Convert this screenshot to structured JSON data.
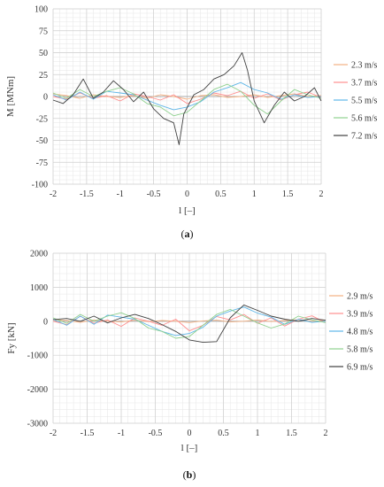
{
  "chart_data": [
    {
      "type": "line",
      "panel": "a",
      "caption_open": "(",
      "caption_letter": "a",
      "caption_close": ")",
      "xlabel": "l [–]",
      "ylabel": "M [MNm]",
      "xlim": [
        -2,
        2
      ],
      "ylim": [
        -100,
        100
      ],
      "xticks": [
        "-2",
        "-1.5",
        "-1",
        "-0.5",
        "0",
        "0.5",
        "1",
        "1.5",
        "2"
      ],
      "yticks": [
        "100",
        "75",
        "50",
        "25",
        "0",
        "-25",
        "-50",
        "-75",
        "-100"
      ],
      "grid": true,
      "legend_position": "right",
      "series": [
        {
          "name": "2.3 m/s",
          "color": "#f4b183",
          "x": [
            -2,
            -1.8,
            -1.6,
            -1.4,
            -1.2,
            -1,
            -0.8,
            -0.6,
            -0.4,
            -0.2,
            0,
            0.2,
            0.4,
            0.6,
            0.8,
            1,
            1.2,
            1.4,
            1.6,
            1.8,
            2
          ],
          "y": [
            3,
            1,
            -2,
            2,
            0,
            -1,
            1,
            -2,
            2,
            0,
            -3,
            1,
            2,
            -1,
            0,
            2,
            -1,
            1,
            3,
            0,
            1
          ]
        },
        {
          "name": "3.7 m/s",
          "color": "#ff8f8f",
          "x": [
            -2,
            -1.8,
            -1.6,
            -1.4,
            -1.2,
            -1,
            -0.8,
            -0.6,
            -0.4,
            -0.2,
            0,
            0.2,
            0.4,
            0.6,
            0.8,
            1,
            1.2,
            1.4,
            1.6,
            1.8,
            2
          ],
          "y": [
            0,
            -3,
            4,
            -2,
            1,
            -5,
            3,
            0,
            -4,
            2,
            -8,
            -3,
            4,
            1,
            6,
            -2,
            3,
            -4,
            2,
            5,
            -1
          ]
        },
        {
          "name": "5.5 m/s",
          "color": "#5fb7e8",
          "x": [
            -2,
            -1.8,
            -1.6,
            -1.4,
            -1.2,
            -1,
            -0.8,
            -0.6,
            -0.4,
            -0.2,
            0,
            0.2,
            0.4,
            0.6,
            0.8,
            1,
            1.2,
            1.4,
            1.6,
            1.8,
            2
          ],
          "y": [
            2,
            -4,
            5,
            -3,
            6,
            4,
            2,
            -4,
            -10,
            -15,
            -12,
            -6,
            5,
            10,
            16,
            8,
            4,
            -3,
            2,
            -1,
            0
          ]
        },
        {
          "name": "5.6 m/s",
          "color": "#8fd18f",
          "x": [
            -2,
            -1.8,
            -1.6,
            -1.4,
            -1.2,
            -1,
            -0.8,
            -0.6,
            -0.4,
            -0.2,
            0,
            0.2,
            0.4,
            0.6,
            0.8,
            1,
            1.2,
            1.4,
            1.6,
            1.8,
            2
          ],
          "y": [
            4,
            -2,
            8,
            0,
            6,
            10,
            3,
            -8,
            -12,
            -22,
            -18,
            -5,
            8,
            14,
            6,
            -10,
            -20,
            -5,
            8,
            2,
            -2
          ]
        },
        {
          "name": "7.2 m/s",
          "color": "#404040",
          "x": [
            -2,
            -1.85,
            -1.7,
            -1.55,
            -1.4,
            -1.25,
            -1.1,
            -0.95,
            -0.8,
            -0.65,
            -0.5,
            -0.35,
            -0.2,
            -0.12,
            -0.05,
            0.1,
            0.25,
            0.4,
            0.55,
            0.7,
            0.82,
            0.9,
            1,
            1.15,
            1.3,
            1.45,
            1.6,
            1.75,
            1.9,
            2
          ],
          "y": [
            -4,
            -8,
            2,
            20,
            -2,
            5,
            18,
            8,
            -6,
            5,
            -14,
            -25,
            -30,
            -55,
            -20,
            2,
            8,
            20,
            25,
            35,
            50,
            30,
            -5,
            -30,
            -10,
            5,
            -5,
            0,
            10,
            -5
          ]
        }
      ]
    },
    {
      "type": "line",
      "panel": "b",
      "caption_open": "(",
      "caption_letter": "b",
      "caption_close": ")",
      "xlabel": "l [–]",
      "ylabel": "Fy [kN]",
      "xlim": [
        -2,
        2
      ],
      "ylim": [
        -3000,
        2000
      ],
      "xticks": [
        "-2",
        "-1.5",
        "-1",
        "-0.5",
        "0",
        "0.5",
        "1",
        "1.5",
        "2"
      ],
      "yticks": [
        "2000",
        "1000",
        "0",
        "-1000",
        "-2000",
        "-3000"
      ],
      "grid": true,
      "legend_position": "right",
      "series": [
        {
          "name": "2.9 m/s",
          "color": "#f4b183",
          "x": [
            -2,
            -1.8,
            -1.6,
            -1.4,
            -1.2,
            -1,
            -0.8,
            -0.6,
            -0.4,
            -0.2,
            0,
            0.2,
            0.4,
            0.6,
            0.8,
            1,
            1.2,
            1.4,
            1.6,
            1.8,
            2
          ],
          "y": [
            50,
            20,
            -30,
            40,
            0,
            -20,
            30,
            -10,
            20,
            0,
            -40,
            10,
            30,
            -20,
            0,
            40,
            -10,
            20,
            50,
            0,
            30
          ]
        },
        {
          "name": "3.9 m/s",
          "color": "#ff8f8f",
          "x": [
            -2,
            -1.8,
            -1.6,
            -1.4,
            -1.2,
            -1,
            -0.8,
            -0.6,
            -0.4,
            -0.2,
            0,
            0.2,
            0.4,
            0.6,
            0.8,
            1,
            1.2,
            1.4,
            1.6,
            1.8,
            2
          ],
          "y": [
            0,
            -100,
            150,
            -60,
            40,
            -150,
            100,
            0,
            -120,
            60,
            -280,
            -120,
            140,
            40,
            200,
            -60,
            100,
            -140,
            60,
            160,
            -40
          ]
        },
        {
          "name": "4.8 m/s",
          "color": "#5fb7e8",
          "x": [
            -2,
            -1.8,
            -1.6,
            -1.4,
            -1.2,
            -1,
            -0.8,
            -0.6,
            -0.4,
            -0.2,
            0,
            0.2,
            0.4,
            0.6,
            0.8,
            1,
            1.2,
            1.4,
            1.6,
            1.8,
            2
          ],
          "y": [
            60,
            -120,
            150,
            -90,
            180,
            120,
            60,
            -120,
            -300,
            -420,
            -360,
            -180,
            150,
            300,
            420,
            240,
            120,
            -90,
            60,
            -30,
            0
          ]
        },
        {
          "name": "5.8 m/s",
          "color": "#8fd18f",
          "x": [
            -2,
            -1.8,
            -1.6,
            -1.4,
            -1.2,
            -1,
            -0.8,
            -0.6,
            -0.4,
            -0.2,
            0,
            0.2,
            0.4,
            0.6,
            0.8,
            1,
            1.2,
            1.4,
            1.6,
            1.8,
            2
          ],
          "y": [
            100,
            -60,
            200,
            0,
            150,
            250,
            80,
            -200,
            -300,
            -500,
            -450,
            -120,
            200,
            350,
            150,
            -50,
            -200,
            -80,
            150,
            40,
            -40
          ]
        },
        {
          "name": "6.9 m/s",
          "color": "#404040",
          "x": [
            -2,
            -1.8,
            -1.6,
            -1.4,
            -1.2,
            -1,
            -0.8,
            -0.6,
            -0.4,
            -0.2,
            0,
            0.2,
            0.4,
            0.6,
            0.8,
            1,
            1.2,
            1.4,
            1.6,
            1.8,
            2
          ],
          "y": [
            50,
            80,
            0,
            150,
            -50,
            100,
            200,
            80,
            -100,
            -300,
            -550,
            -620,
            -600,
            100,
            480,
            320,
            150,
            60,
            0,
            80,
            30
          ]
        }
      ]
    }
  ]
}
